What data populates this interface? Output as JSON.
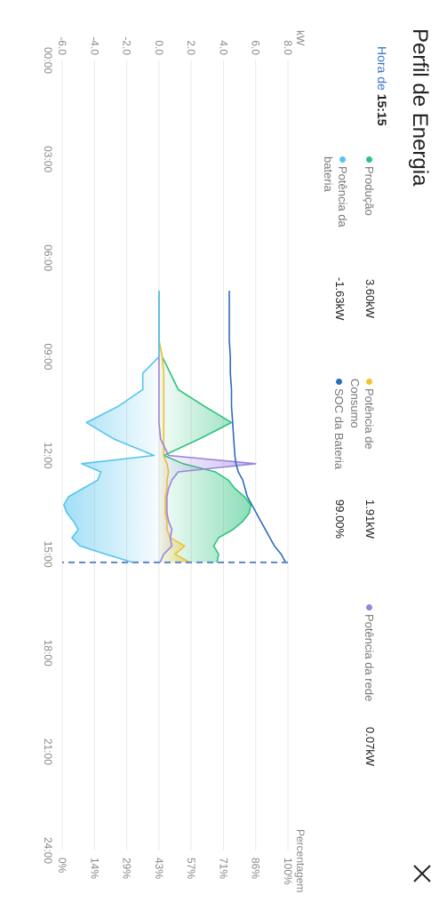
{
  "page": {
    "title": "Perfil de Energia",
    "close_label": "close"
  },
  "time": {
    "prefix": "Hora de",
    "value": "15:15"
  },
  "legend": [
    {
      "name": "Produção",
      "value": "3.60kW",
      "color": "#2ec27e"
    },
    {
      "name": "Potência de Consumo",
      "value": "1.91kW",
      "color": "#f2c12e"
    },
    {
      "name": "Potência da rede",
      "value": "0.07kW",
      "color": "#9b82e0"
    },
    {
      "name": "Potência da bateria",
      "value": "-1.63kW",
      "color": "#55c4ee"
    },
    {
      "name": "SOC da Bateria",
      "value": "99.00%",
      "color": "#2d6db8"
    }
  ],
  "chart_data": {
    "type": "area",
    "x": [
      "07:00",
      "08:00",
      "08:30",
      "09:00",
      "09:30",
      "10:00",
      "10:30",
      "11:00",
      "11:30",
      "12:00",
      "12:15",
      "12:30",
      "12:45",
      "13:00",
      "13:15",
      "13:30",
      "13:45",
      "14:00",
      "14:15",
      "14:30",
      "14:45",
      "15:00",
      "15:15"
    ],
    "left_axis": {
      "label": "kW",
      "ticks": [
        "8.0",
        "6.0",
        "4.0",
        "2.0",
        "0.0",
        "-2.0",
        "-4.0",
        "-6.0"
      ],
      "ylim": [
        -6,
        8
      ]
    },
    "right_axis": {
      "label": "Percentagem",
      "ticks": [
        "100%",
        "86%",
        "71%",
        "57%",
        "43%",
        "29%",
        "14%",
        "0%"
      ],
      "ylim": [
        0,
        100
      ]
    },
    "x_ticks": [
      "00:00",
      "03:00",
      "06:00",
      "09:00",
      "12:00",
      "15:00",
      "18:00",
      "21:00",
      "24:00"
    ],
    "xlim": [
      "00:00",
      "24:00"
    ],
    "cursor": "15:15",
    "grid": true,
    "series": [
      {
        "name": "Produção",
        "axis": "left",
        "color": "#2ec27e",
        "values": [
          0,
          0,
          0,
          0.2,
          0.7,
          1.2,
          2.8,
          4.5,
          2.5,
          0.3,
          1.5,
          3.5,
          4.3,
          4.7,
          5.3,
          5.7,
          5.6,
          5.2,
          4.6,
          3.7,
          3.4,
          3.7,
          3.6
        ]
      },
      {
        "name": "Potência de Consumo",
        "axis": "left",
        "color": "#f2c12e",
        "values": [
          0,
          0,
          0,
          0.2,
          0.3,
          0.3,
          0.3,
          0.3,
          0.3,
          0.3,
          0.5,
          0.6,
          0.5,
          0.5,
          0.4,
          0.4,
          0.4,
          0.5,
          0.5,
          0.7,
          1.6,
          1.0,
          1.91
        ]
      },
      {
        "name": "Potência da rede",
        "axis": "left",
        "color": "#9b82e0",
        "values": [
          0,
          0,
          0,
          0,
          0,
          0,
          0,
          0,
          0.1,
          0.6,
          6.0,
          1.2,
          0.8,
          0.6,
          0.5,
          0.5,
          0.5,
          0.6,
          0.8,
          0.7,
          0.8,
          0.3,
          0.07
        ]
      },
      {
        "name": "Potência da bateria",
        "axis": "left",
        "color": "#55c4ee",
        "values": [
          0,
          0,
          0,
          0,
          -1.0,
          -1.0,
          -2.5,
          -4.5,
          -2.8,
          -0.3,
          -4.8,
          -3.6,
          -3.8,
          -4.7,
          -5.6,
          -5.9,
          -5.7,
          -5.3,
          -5.0,
          -5.4,
          -4.9,
          -3.3,
          -1.63
        ]
      },
      {
        "name": "SOC da Bateria",
        "axis": "right",
        "color": "#2d6db8",
        "values": [
          74,
          74,
          74,
          74.5,
          74.5,
          75,
          75,
          75.5,
          76,
          76.5,
          77,
          78,
          80,
          81,
          82,
          84,
          86,
          88,
          90,
          92,
          94,
          97,
          99
        ]
      }
    ]
  }
}
